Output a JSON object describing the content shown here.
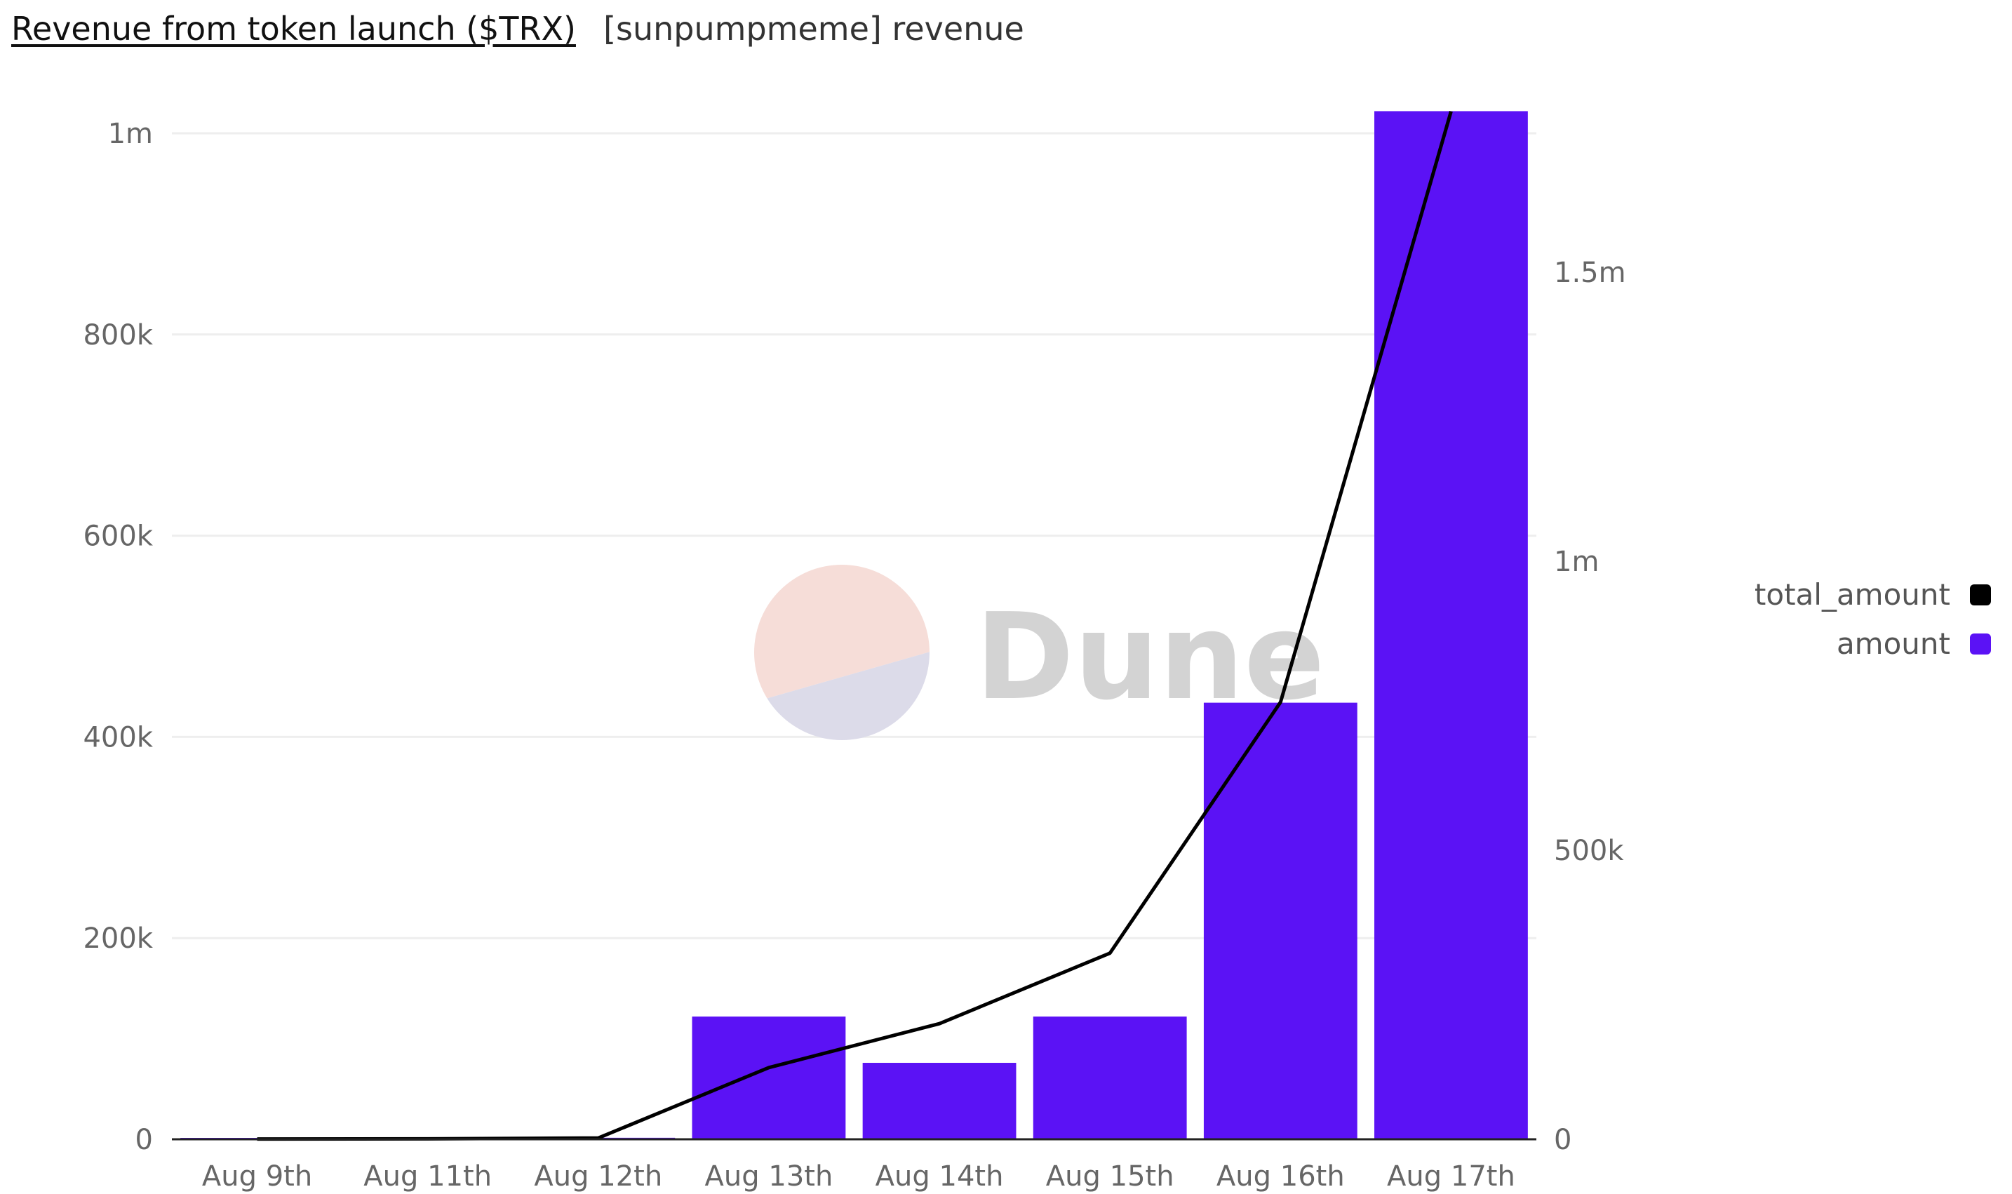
{
  "header": {
    "title": "Revenue from token launch ($TRX)",
    "subtitle": "[sunpumpmeme] revenue"
  },
  "watermark": {
    "text": "Dune"
  },
  "colors": {
    "bar": "#5b12f5",
    "line": "#000000",
    "grid": "#eeeeee",
    "axis": "#222222",
    "watermark_top": "#f6ddd8",
    "watermark_bottom": "#dcdbe9"
  },
  "chart_data": {
    "type": "bar",
    "title": "Revenue from token launch ($TRX)",
    "xlabel": "",
    "ylabel": "",
    "categories": [
      "Aug 9th",
      "Aug 11th",
      "Aug 12th",
      "Aug 13th",
      "Aug 14th",
      "Aug 15th",
      "Aug 16th",
      "Aug 17th"
    ],
    "series": [
      {
        "name": "amount",
        "type": "bar",
        "axis": "left",
        "color": "#5b12f5",
        "values": [
          500,
          200,
          1500,
          122000,
          76000,
          122000,
          434000,
          1022000
        ]
      },
      {
        "name": "total_amount",
        "type": "line",
        "axis": "right",
        "color": "#000000",
        "values": [
          500,
          700,
          2200,
          124000,
          200000,
          322000,
          756000,
          1778000
        ]
      }
    ],
    "y_left": {
      "ylim": [
        0,
        1000000
      ],
      "ticks": [
        0,
        200000,
        400000,
        600000,
        800000,
        1000000
      ],
      "tick_labels": [
        "0",
        "200k",
        "400k",
        "600k",
        "800k",
        "1m"
      ]
    },
    "y_right": {
      "ylim": [
        0,
        1740000
      ],
      "ticks": [
        0,
        500000,
        1000000,
        1500000
      ],
      "tick_labels": [
        "0",
        "500k",
        "1m",
        "1.5m"
      ]
    },
    "grid": true,
    "legend": {
      "position": "right",
      "entries": [
        {
          "label": "total_amount",
          "color": "#000000"
        },
        {
          "label": "amount",
          "color": "#5b12f5"
        }
      ]
    }
  }
}
